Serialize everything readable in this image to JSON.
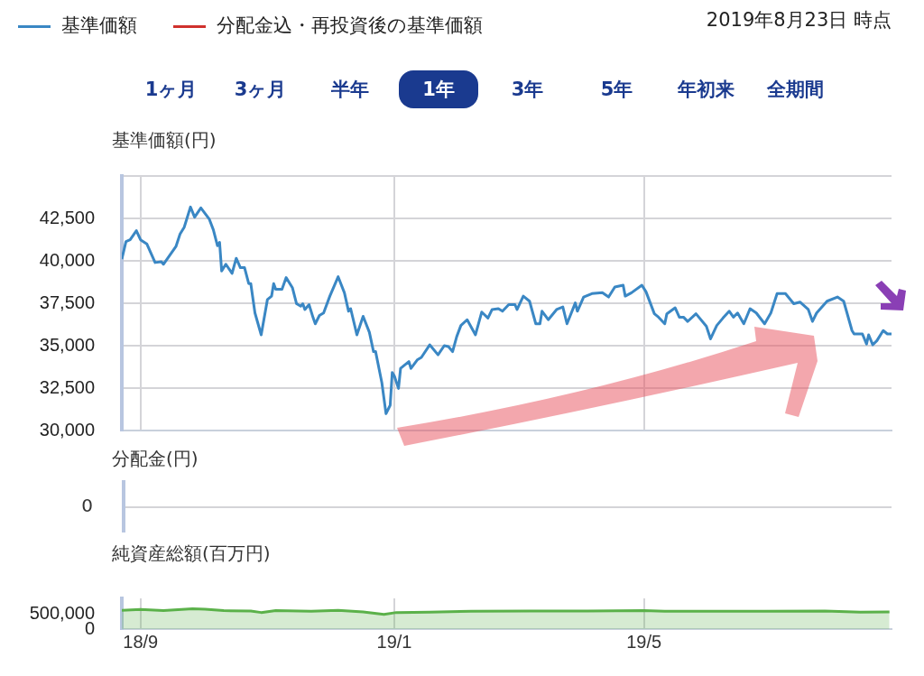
{
  "chart_data": [
    {
      "type": "line",
      "ylabel": "基準価額(円)",
      "legend": "top left",
      "grid": true,
      "tick_labels": "y",
      "annotations": [
        "2019年8月23日 時点",
        "1ヶ月",
        "3ヶ月",
        "半年",
        "1年",
        "3年",
        "5年",
        "年初来",
        "全期間"
      ],
      "xlim": [
        "2018-08-23",
        "2019-08-28"
      ],
      "xticks": [
        {
          "value": "2018-09-01",
          "label": null
        },
        {
          "value": "2019-01-01",
          "label": null
        },
        {
          "value": "2019-05-01",
          "label": null
        }
      ],
      "ylim": [
        30000,
        45000
      ],
      "yticks": [
        {
          "value": 30000,
          "label": "30,000"
        },
        {
          "value": 32500,
          "label": "32,500"
        },
        {
          "value": 35000,
          "label": "35,000"
        },
        {
          "value": 37500,
          "label": "37,500"
        },
        {
          "value": 40000,
          "label": "40,000"
        },
        {
          "value": 42500,
          "label": "42,500"
        },
        {
          "value": 45000,
          "label": null
        }
      ],
      "series": [
        {
          "name": "基準価額",
          "color": "#3a87c4",
          "x": [
            "2018-08-23",
            "2018-08-25",
            "2018-08-27",
            "2018-08-30",
            "2018-09-01",
            "2018-09-04",
            "2018-09-08",
            "2018-09-11",
            "2018-09-12",
            "2018-09-18",
            "2018-09-20",
            "2018-09-22",
            "2018-09-25",
            "2018-09-27",
            "2018-09-30",
            "2018-10-04",
            "2018-10-06",
            "2018-10-08",
            "2018-10-09",
            "2018-10-10",
            "2018-10-12",
            "2018-10-15",
            "2018-10-17",
            "2018-10-19",
            "2018-10-21",
            "2018-10-23",
            "2018-10-24",
            "2018-10-26",
            "2018-10-29",
            "2018-11-01",
            "2018-11-03",
            "2018-11-04",
            "2018-11-05",
            "2018-11-08",
            "2018-11-10",
            "2018-11-13",
            "2018-11-15",
            "2018-11-17",
            "2018-11-18",
            "2018-11-19",
            "2018-11-21",
            "2018-11-23",
            "2018-11-24",
            "2018-11-26",
            "2018-11-28",
            "2018-12-01",
            "2018-12-05",
            "2018-12-08",
            "2018-12-10",
            "2018-12-11",
            "2018-12-14",
            "2018-12-17",
            "2018-12-20",
            "2018-12-22",
            "2018-12-23",
            "2018-12-26",
            "2018-12-28",
            "2018-12-30",
            "2018-12-31",
            "2019-01-01",
            "2019-01-03",
            "2019-01-04",
            "2019-01-08",
            "2019-01-09",
            "2019-01-12",
            "2019-01-14",
            "2019-01-18",
            "2019-01-22",
            "2019-01-25",
            "2019-01-27",
            "2019-01-29",
            "2019-01-31",
            "2019-02-02",
            "2019-02-05",
            "2019-02-09",
            "2019-02-12",
            "2019-02-15",
            "2019-02-17",
            "2019-02-20",
            "2019-02-22",
            "2019-02-25",
            "2019-02-28",
            "2019-03-01",
            "2019-03-04",
            "2019-03-07",
            "2019-03-10",
            "2019-03-12",
            "2019-03-13",
            "2019-03-16",
            "2019-03-20",
            "2019-03-23",
            "2019-03-25",
            "2019-03-29",
            "2019-03-30",
            "2019-04-02",
            "2019-04-06",
            "2019-04-11",
            "2019-04-14",
            "2019-04-17",
            "2019-04-21",
            "2019-04-22",
            "2019-04-25",
            "2019-04-30",
            "2019-05-02",
            "2019-05-06",
            "2019-05-08",
            "2019-05-11",
            "2019-05-12",
            "2019-05-16",
            "2019-05-18",
            "2019-05-20",
            "2019-05-22",
            "2019-05-26",
            "2019-05-31",
            "2019-06-02",
            "2019-06-05",
            "2019-06-08",
            "2019-06-11",
            "2019-06-13",
            "2019-06-15",
            "2019-06-18",
            "2019-06-21",
            "2019-06-24",
            "2019-06-28",
            "2019-07-01",
            "2019-07-04",
            "2019-07-08",
            "2019-07-12",
            "2019-07-15",
            "2019-07-19",
            "2019-07-21",
            "2019-07-23",
            "2019-07-28",
            "2019-08-02",
            "2019-08-05",
            "2019-08-09",
            "2019-08-10",
            "2019-08-14",
            "2019-08-16",
            "2019-08-17",
            "2019-08-19",
            "2019-08-21",
            "2019-08-24",
            "2019-08-26",
            "2019-08-28"
          ],
          "values": [
            40100,
            41140,
            41240,
            41780,
            41240,
            41000,
            39900,
            39950,
            39800,
            40840,
            41580,
            41980,
            43170,
            42570,
            43120,
            42470,
            41830,
            40890,
            41090,
            39400,
            39800,
            39260,
            40150,
            39600,
            39600,
            38660,
            38660,
            36930,
            35640,
            37720,
            37920,
            38660,
            38320,
            38320,
            39010,
            38420,
            37470,
            37330,
            37470,
            37130,
            37420,
            36630,
            36290,
            36780,
            36930,
            37920,
            39060,
            38120,
            37030,
            37180,
            35640,
            36730,
            35790,
            34650,
            34650,
            32820,
            30990,
            31490,
            33420,
            33220,
            32480,
            33660,
            34060,
            33660,
            34160,
            34310,
            35050,
            34460,
            35000,
            34950,
            34650,
            35540,
            36190,
            36530,
            35640,
            36980,
            36630,
            37130,
            37180,
            37030,
            37420,
            37420,
            37130,
            37920,
            37620,
            36290,
            36290,
            37030,
            36530,
            37130,
            37280,
            36290,
            37520,
            37030,
            37870,
            38070,
            38120,
            37870,
            38460,
            38560,
            37920,
            38120,
            38560,
            38170,
            36880,
            36680,
            36290,
            36880,
            37230,
            36680,
            36680,
            36430,
            36880,
            36140,
            35400,
            36190,
            36630,
            37030,
            36680,
            36930,
            36290,
            37180,
            36930,
            36290,
            36930,
            38070,
            38070,
            37470,
            37570,
            37130,
            36430,
            36930,
            37620,
            37870,
            37620,
            35890,
            35690,
            35690,
            35100,
            35640,
            35050,
            35300,
            35890,
            35690,
            35690
          ]
        },
        {
          "name": "分配金込・再投資後の基準価額",
          "color": "#d0312d"
        }
      ]
    },
    {
      "type": "other",
      "ylabel": "分配金(円)",
      "annotations": [
        "0"
      ]
    },
    {
      "type": "area",
      "ylabel": "純資産総額(百万円)",
      "grid": "x",
      "xlim": [
        "2018-08-23",
        "2019-08-28"
      ],
      "xticks": [
        {
          "value": "2018-09-01",
          "label": "18/9"
        },
        {
          "value": "2019-01-01",
          "label": "19/1"
        },
        {
          "value": "2019-05-01",
          "label": "19/5"
        }
      ],
      "ylim": [
        0,
        1000000
      ],
      "yticks": [
        0,
        {
          "value": 500000,
          "label": "500,000"
        }
      ],
      "series": [
        {
          "color": "#5bb14a",
          "x": [
            "2018-08-23",
            "2018-09-01",
            "2018-09-12",
            "2018-09-26",
            "2018-10-02",
            "2018-10-11",
            "2018-10-24",
            "2018-10-29",
            "2018-11-05",
            "2018-11-22",
            "2018-12-05",
            "2018-12-17",
            "2018-12-27",
            "2019-01-02",
            "2019-01-18",
            "2019-02-07",
            "2019-03-07",
            "2019-04-04",
            "2019-05-01",
            "2019-05-11",
            "2019-05-31",
            "2019-06-28",
            "2019-07-27",
            "2019-08-13",
            "2019-08-27"
          ],
          "values": [
            610000,
            640000,
            600000,
            660000,
            650000,
            600000,
            590000,
            540000,
            600000,
            580000,
            610000,
            560000,
            480000,
            540000,
            550000,
            580000,
            590000,
            590000,
            600000,
            580000,
            580000,
            580000,
            590000,
            550000,
            560000
          ]
        }
      ]
    }
  ]
}
